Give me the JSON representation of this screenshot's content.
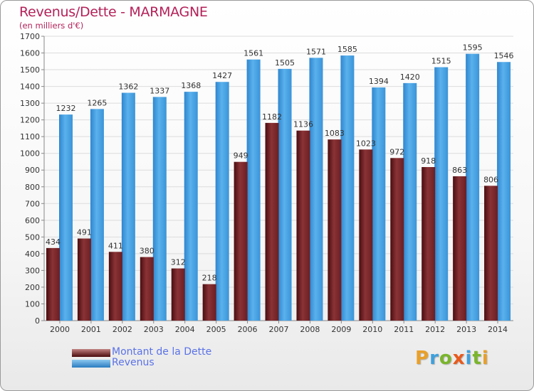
{
  "colors": {
    "dette": "#7a2a2d",
    "revenus": "#3c9ee4",
    "title": "#b42158",
    "legend_text": "#5a72e8"
  },
  "chart_data": {
    "type": "bar",
    "title": "Revenus/Dette - MARMAGNE",
    "subtitle": "(en milliers d'€)",
    "categories": [
      "2000",
      "2001",
      "2002",
      "2003",
      "2004",
      "2005",
      "2006",
      "2007",
      "2008",
      "2009",
      "2010",
      "2011",
      "2012",
      "2013",
      "2014"
    ],
    "series": [
      {
        "name": "Montant de la Dette",
        "values": [
          434,
          491,
          411,
          380,
          312,
          218,
          949,
          1182,
          1136,
          1083,
          1023,
          972,
          918,
          863,
          806
        ]
      },
      {
        "name": "Revenus",
        "values": [
          1232,
          1265,
          1362,
          1337,
          1368,
          1427,
          1561,
          1505,
          1571,
          1585,
          1394,
          1420,
          1515,
          1595,
          1546
        ]
      }
    ],
    "yticks": [
      0,
      100,
      200,
      300,
      400,
      500,
      600,
      700,
      800,
      900,
      1000,
      1100,
      1200,
      1300,
      1400,
      1500,
      1600,
      1700
    ],
    "ylim": [
      0,
      1700
    ],
    "grid": true,
    "legend_position": "bottom-left"
  },
  "legend": {
    "dette_label": "Montant de la Dette",
    "revenus_label": "Revenus"
  },
  "logo": {
    "letters": [
      "P",
      "r",
      "o",
      "x",
      "i",
      "t",
      "i"
    ],
    "colors": [
      "#e8a02a",
      "#3fa0dc",
      "#7ab52c",
      "#e85a1c",
      "#3fa0dc",
      "#7ab52c",
      "#e8a02a"
    ]
  }
}
